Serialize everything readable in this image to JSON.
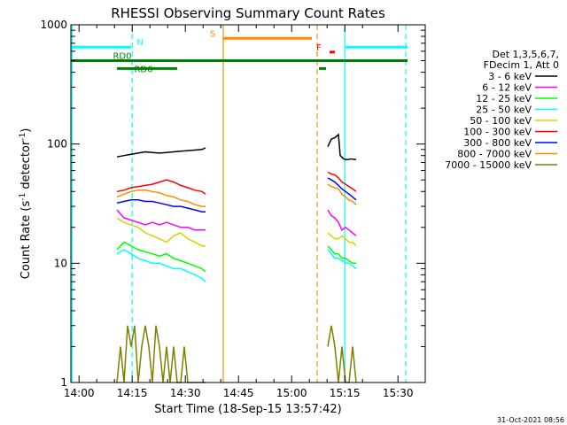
{
  "chart_data": {
    "type": "line",
    "title": "RHESSI Observing Summary Count Rates",
    "xlabel": "Start Time (18-Sep-15 13:57:42)",
    "ylabel_main": "Count Rate (s",
    "ylabel_sup1": "-1",
    "ylabel_mid": " detector",
    "ylabel_sup2": "-1",
    "ylabel_end": ")",
    "x_unit": "minutes after 13:57:42",
    "xlim": [
      0,
      100
    ],
    "ylim": [
      1,
      1000
    ],
    "yscale": "log",
    "x_ticks": [
      {
        "label": "14:00",
        "x": 2.3
      },
      {
        "label": "14:15",
        "x": 17.3
      },
      {
        "label": "14:30",
        "x": 32.3
      },
      {
        "label": "14:45",
        "x": 47.3
      },
      {
        "label": "15:00",
        "x": 62.3
      },
      {
        "label": "15:15",
        "x": 77.3
      },
      {
        "label": "15:30",
        "x": 92.3
      }
    ],
    "y_ticks": [
      {
        "label": "1",
        "y": 1
      },
      {
        "label": "10",
        "y": 10
      },
      {
        "label": "100",
        "y": 100
      },
      {
        "label": "1000",
        "y": 1000
      }
    ],
    "legend_header": [
      "Det 1,3,5,6,7,",
      "FDecim 1, Att 0"
    ],
    "legend_position": "right",
    "timestamp": "31-Oct-2021 08:56",
    "series": [
      {
        "name": "3 - 6 keV",
        "color": "#000000",
        "segments": [
          [
            [
              13,
              78
            ],
            [
              15,
              80
            ],
            [
              17,
              82
            ],
            [
              19,
              84
            ],
            [
              21,
              86
            ],
            [
              23,
              85
            ],
            [
              25,
              84
            ],
            [
              27,
              85
            ],
            [
              29,
              86
            ],
            [
              31,
              87
            ],
            [
              33,
              88
            ],
            [
              35,
              89
            ],
            [
              37,
              90
            ],
            [
              38,
              93
            ]
          ],
          [
            [
              72.5,
              95
            ],
            [
              73.5,
              110
            ],
            [
              74.5,
              113
            ],
            [
              75.5,
              120
            ],
            [
              76,
              80
            ],
            [
              77,
              75
            ],
            [
              78,
              74
            ],
            [
              79,
              75
            ],
            [
              80.5,
              74
            ]
          ]
        ]
      },
      {
        "name": "6 - 12 keV",
        "color": "#ff00ff",
        "segments": [
          [
            [
              13,
              28
            ],
            [
              15,
              24
            ],
            [
              17,
              23
            ],
            [
              19,
              22
            ],
            [
              21,
              21
            ],
            [
              23,
              22
            ],
            [
              25,
              21
            ],
            [
              27,
              22
            ],
            [
              29,
              21
            ],
            [
              31,
              20
            ],
            [
              33,
              20
            ],
            [
              35,
              19
            ],
            [
              37,
              19
            ],
            [
              38,
              19
            ]
          ],
          [
            [
              72.5,
              28
            ],
            [
              73.5,
              25
            ],
            [
              74.5,
              24
            ],
            [
              75.5,
              22
            ],
            [
              76.5,
              19
            ],
            [
              77.5,
              20
            ],
            [
              78.5,
              19
            ],
            [
              79.5,
              18
            ],
            [
              80.5,
              17
            ]
          ]
        ]
      },
      {
        "name": "12 - 25 keV",
        "color": "#00ff00",
        "segments": [
          [
            [
              13,
              13
            ],
            [
              15,
              15
            ],
            [
              17,
              14
            ],
            [
              19,
              13
            ],
            [
              21,
              12.5
            ],
            [
              23,
              12
            ],
            [
              25,
              11.5
            ],
            [
              27,
              12
            ],
            [
              29,
              11
            ],
            [
              31,
              10.5
            ],
            [
              33,
              10
            ],
            [
              35,
              9.5
            ],
            [
              37,
              9
            ],
            [
              38,
              8.5
            ]
          ],
          [
            [
              72.5,
              14
            ],
            [
              73.5,
              13
            ],
            [
              74.5,
              12
            ],
            [
              75.5,
              12
            ],
            [
              76.5,
              11
            ],
            [
              77.5,
              11
            ],
            [
              78.5,
              10.5
            ],
            [
              79.5,
              10
            ],
            [
              80.5,
              10
            ]
          ]
        ]
      },
      {
        "name": "25 - 50 keV",
        "color": "#00ffff",
        "segments": [
          [
            [
              13,
              12
            ],
            [
              15,
              13
            ],
            [
              17,
              12
            ],
            [
              19,
              11
            ],
            [
              21,
              10.5
            ],
            [
              23,
              10
            ],
            [
              25,
              10
            ],
            [
              27,
              9.5
            ],
            [
              29,
              9
            ],
            [
              31,
              9
            ],
            [
              33,
              8.5
            ],
            [
              35,
              8
            ],
            [
              37,
              7.5
            ],
            [
              38,
              7
            ]
          ],
          [
            [
              72.5,
              13
            ],
            [
              73.5,
              12
            ],
            [
              74.5,
              11
            ],
            [
              75.5,
              11
            ],
            [
              76.5,
              10.5
            ],
            [
              77.5,
              10
            ],
            [
              78.5,
              10
            ],
            [
              79.5,
              9.5
            ],
            [
              80.5,
              9
            ]
          ]
        ]
      },
      {
        "name": "50 - 100 keV",
        "color": "#d4d400",
        "segments": [
          [
            [
              13,
              24
            ],
            [
              15,
              22
            ],
            [
              17,
              21
            ],
            [
              19,
              20
            ],
            [
              21,
              18
            ],
            [
              23,
              17
            ],
            [
              25,
              16
            ],
            [
              27,
              15
            ],
            [
              29,
              17
            ],
            [
              31,
              18
            ],
            [
              33,
              16
            ],
            [
              35,
              15
            ],
            [
              37,
              14
            ],
            [
              38,
              14
            ]
          ],
          [
            [
              72.5,
              18
            ],
            [
              73.5,
              17
            ],
            [
              74.5,
              16
            ],
            [
              75.5,
              16
            ],
            [
              76.5,
              17
            ],
            [
              77.5,
              16
            ],
            [
              78.5,
              15
            ],
            [
              79.5,
              15
            ],
            [
              80.5,
              14
            ]
          ]
        ]
      },
      {
        "name": "100 - 300 keV",
        "color": "#ff0000",
        "segments": [
          [
            [
              13,
              40
            ],
            [
              15,
              41
            ],
            [
              17,
              43
            ],
            [
              19,
              44
            ],
            [
              21,
              45
            ],
            [
              23,
              46
            ],
            [
              25,
              48
            ],
            [
              27,
              50
            ],
            [
              29,
              48
            ],
            [
              31,
              45
            ],
            [
              33,
              43
            ],
            [
              35,
              41
            ],
            [
              37,
              40
            ],
            [
              38,
              38
            ]
          ],
          [
            [
              72.5,
              58
            ],
            [
              73.5,
              56
            ],
            [
              74.5,
              55
            ],
            [
              75.5,
              52
            ],
            [
              76.5,
              48
            ],
            [
              77.5,
              46
            ],
            [
              78.5,
              44
            ],
            [
              79.5,
              42
            ],
            [
              80.5,
              40
            ]
          ]
        ]
      },
      {
        "name": "300 - 800 keV",
        "color": "#0000ff",
        "segments": [
          [
            [
              13,
              32
            ],
            [
              15,
              33
            ],
            [
              17,
              34
            ],
            [
              19,
              34
            ],
            [
              21,
              33
            ],
            [
              23,
              33
            ],
            [
              25,
              32
            ],
            [
              27,
              31
            ],
            [
              29,
              30
            ],
            [
              31,
              30
            ],
            [
              33,
              29
            ],
            [
              35,
              28
            ],
            [
              37,
              27
            ],
            [
              38,
              27
            ]
          ],
          [
            [
              72.5,
              52
            ],
            [
              73.5,
              50
            ],
            [
              74.5,
              48
            ],
            [
              75.5,
              45
            ],
            [
              76.5,
              42
            ],
            [
              77.5,
              40
            ],
            [
              78.5,
              38
            ],
            [
              79.5,
              36
            ],
            [
              80.5,
              34
            ]
          ]
        ]
      },
      {
        "name": "800 - 7000 keV",
        "color": "#ff8c00",
        "segments": [
          [
            [
              13,
              36
            ],
            [
              15,
              38
            ],
            [
              17,
              40
            ],
            [
              19,
              41
            ],
            [
              21,
              41
            ],
            [
              23,
              40
            ],
            [
              25,
              39
            ],
            [
              27,
              37
            ],
            [
              29,
              36
            ],
            [
              31,
              34
            ],
            [
              33,
              33
            ],
            [
              35,
              31
            ],
            [
              37,
              30
            ],
            [
              38,
              30
            ]
          ],
          [
            [
              72.5,
              46
            ],
            [
              73.5,
              44
            ],
            [
              74.5,
              43
            ],
            [
              75.5,
              42
            ],
            [
              76.5,
              38
            ],
            [
              77.5,
              36
            ],
            [
              78.5,
              34
            ],
            [
              79.5,
              33
            ],
            [
              80.5,
              31
            ]
          ]
        ]
      },
      {
        "name": "7000 - 15000 keV",
        "color": "#808000",
        "segments": [
          [
            [
              13,
              1
            ],
            [
              14,
              2
            ],
            [
              15,
              1
            ],
            [
              16,
              3
            ],
            [
              17,
              2
            ],
            [
              18,
              3
            ],
            [
              19,
              1
            ],
            [
              20,
              2
            ],
            [
              21,
              3
            ],
            [
              22,
              2
            ],
            [
              23,
              1
            ],
            [
              24,
              3
            ],
            [
              25,
              2
            ],
            [
              26,
              1
            ],
            [
              27,
              2
            ],
            [
              28,
              1
            ],
            [
              29,
              2
            ],
            [
              30,
              1
            ],
            [
              31,
              1
            ],
            [
              32,
              2
            ],
            [
              33,
              1
            ],
            [
              34,
              1
            ],
            [
              35,
              1
            ],
            [
              36,
              1
            ],
            [
              37,
              1
            ],
            [
              38,
              1
            ]
          ],
          [
            [
              72.5,
              2
            ],
            [
              73.5,
              3
            ],
            [
              74.5,
              2
            ],
            [
              75.5,
              1
            ],
            [
              76.5,
              2
            ],
            [
              77.5,
              1
            ],
            [
              78.5,
              1
            ],
            [
              79.5,
              2
            ],
            [
              80.5,
              1
            ]
          ]
        ]
      }
    ],
    "flags": [
      {
        "label": "N",
        "color": "#00ffff",
        "y": 650,
        "segments": [
          [
            0,
            17
          ],
          [
            77.5,
            95
          ]
        ]
      },
      {
        "label": "S",
        "color": "#ff8c00",
        "y": 770,
        "segments": [
          [
            43,
            68
          ]
        ]
      },
      {
        "label": "F",
        "color": "#ff0000",
        "y": 590,
        "segments": [
          [
            73,
            74.5
          ]
        ]
      },
      {
        "label": "RD0",
        "color": "#008000",
        "y": 500,
        "segments": [
          [
            0,
            95
          ]
        ]
      },
      {
        "label": "RD6",
        "color": "#008000",
        "y": 430,
        "segments": [
          [
            13,
            30
          ],
          [
            70,
            72
          ]
        ]
      }
    ],
    "markers": [
      {
        "color": "#00ffff",
        "style": "dashed",
        "x": 17.3
      },
      {
        "color": "#00ffff",
        "style": "solid",
        "x": 0.3
      },
      {
        "color": "#00ffff",
        "style": "solid",
        "x": 77.3
      },
      {
        "color": "#00ffff",
        "style": "dashed",
        "x": 94.5
      },
      {
        "color": "#ff8c00",
        "style": "solid",
        "x": 43
      },
      {
        "color": "#ff8c00",
        "style": "dashed",
        "x": 69.5
      }
    ]
  }
}
